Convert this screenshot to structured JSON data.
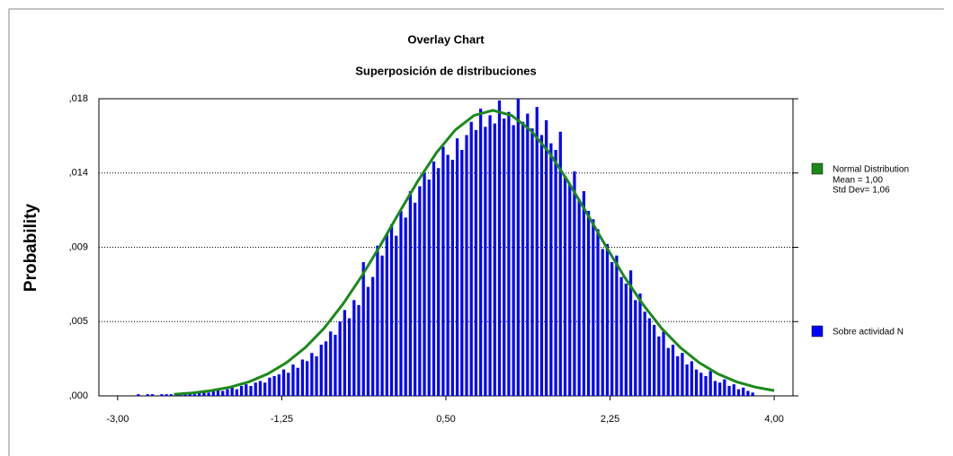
{
  "chart_data": {
    "type": "histogram",
    "title": "Overlay Chart",
    "subtitle": "Superposición de distribuciones",
    "y_label": "Probability",
    "xlim": [
      -3.2,
      4.2
    ],
    "ylim": [
      0,
      0.018
    ],
    "xticks": [
      {
        "value": -3,
        "label": "-3,00"
      },
      {
        "value": -1.25,
        "label": "-1,25"
      },
      {
        "value": 0.5,
        "label": "0,50"
      },
      {
        "value": 2.25,
        "label": "2,25"
      },
      {
        "value": 4,
        "label": "4,00"
      }
    ],
    "yticks": [
      {
        "value": 0,
        "label": ",000"
      },
      {
        "value": 0.0045,
        "label": ",005"
      },
      {
        "value": 0.009,
        "label": ",009"
      },
      {
        "value": 0.0135,
        "label": ",014"
      },
      {
        "value": 0.018,
        "label": ",018"
      }
    ],
    "grid": true,
    "series": [
      {
        "name": "Normal Distribution",
        "type": "line",
        "color": "#1a8a1a",
        "annotations": [
          "Mean = 1,00",
          "Std Dev= 1,06"
        ],
        "x": [
          -2.4,
          -2.2,
          -2.0,
          -1.8,
          -1.6,
          -1.4,
          -1.2,
          -1.0,
          -0.8,
          -0.6,
          -0.4,
          -0.2,
          0,
          0.2,
          0.4,
          0.6,
          0.8,
          1.0,
          1.2,
          1.4,
          1.6,
          1.8,
          2.0,
          2.2,
          2.4,
          2.6,
          2.8,
          3.0,
          3.2,
          3.4,
          3.6,
          3.8,
          4.0
        ],
        "values": [
          0.0001,
          0.00018,
          0.00032,
          0.00053,
          0.00085,
          0.00133,
          0.00201,
          0.00292,
          0.00409,
          0.00554,
          0.00723,
          0.00911,
          0.01109,
          0.01301,
          0.01474,
          0.01611,
          0.01699,
          0.0173,
          0.01699,
          0.01611,
          0.01474,
          0.01301,
          0.01109,
          0.00911,
          0.00723,
          0.00554,
          0.00409,
          0.00292,
          0.00201,
          0.00133,
          0.00085,
          0.00053,
          0.00032
        ]
      },
      {
        "name": "Sobre actividad N",
        "type": "histogram",
        "color": "#0000ff",
        "bins": [
          -2.8,
          -2.75,
          -2.7,
          -2.65,
          -2.6,
          -2.55,
          -2.5,
          -2.45,
          -2.4,
          -2.35,
          -2.3,
          -2.25,
          -2.2,
          -2.15,
          -2.1,
          -2.05,
          -2.0,
          -1.95,
          -1.9,
          -1.85,
          -1.8,
          -1.75,
          -1.7,
          -1.65,
          -1.6,
          -1.55,
          -1.5,
          -1.45,
          -1.4,
          -1.35,
          -1.3,
          -1.25,
          -1.2,
          -1.15,
          -1.1,
          -1.05,
          -1.0,
          -0.95,
          -0.9,
          -0.85,
          -0.8,
          -0.75,
          -0.7,
          -0.65,
          -0.6,
          -0.55,
          -0.5,
          -0.45,
          -0.4,
          -0.35,
          -0.3,
          -0.25,
          -0.2,
          -0.15,
          -0.1,
          -0.05,
          0,
          0.05,
          0.1,
          0.15,
          0.2,
          0.25,
          0.3,
          0.35,
          0.4,
          0.45,
          0.5,
          0.55,
          0.6,
          0.65,
          0.7,
          0.75,
          0.8,
          0.85,
          0.9,
          0.95,
          1.0,
          1.05,
          1.1,
          1.15,
          1.2,
          1.25,
          1.3,
          1.35,
          1.4,
          1.45,
          1.5,
          1.55,
          1.6,
          1.65,
          1.7,
          1.75,
          1.8,
          1.85,
          1.9,
          1.95,
          2.0,
          2.05,
          2.1,
          2.15,
          2.2,
          2.25,
          2.3,
          2.35,
          2.4,
          2.45,
          2.5,
          2.55,
          2.6,
          2.65,
          2.7,
          2.75,
          2.8,
          2.85,
          2.9,
          2.95,
          3.0,
          3.05,
          3.1,
          3.15,
          3.2,
          3.25,
          3.3,
          3.35,
          3.4,
          3.45,
          3.5,
          3.55,
          3.6,
          3.65,
          3.7,
          3.75,
          3.8
        ],
        "values": [
          0.0001,
          0,
          0.0001,
          0.0001,
          0,
          0.0001,
          0.0001,
          0.0001,
          0,
          0.0001,
          0.0001,
          0.0002,
          0.0001,
          0.0002,
          0.0003,
          0.0002,
          0.0003,
          0.0004,
          0.0003,
          0.0004,
          0.0005,
          0.0004,
          0.0006,
          0.0007,
          0.0006,
          0.0008,
          0.0009,
          0.0008,
          0.0011,
          0.0012,
          0.0013,
          0.0016,
          0.0014,
          0.0019,
          0.0017,
          0.0022,
          0.0021,
          0.0026,
          0.0024,
          0.0031,
          0.0033,
          0.0039,
          0.0037,
          0.0045,
          0.0052,
          0.0047,
          0.0058,
          0.0055,
          0.0081,
          0.0066,
          0.0072,
          0.0091,
          0.0085,
          0.0098,
          0.0104,
          0.0097,
          0.0112,
          0.0108,
          0.0124,
          0.0117,
          0.0127,
          0.0135,
          0.0131,
          0.0142,
          0.0138,
          0.0151,
          0.0146,
          0.0143,
          0.0156,
          0.0149,
          0.0158,
          0.0166,
          0.0161,
          0.0174,
          0.0163,
          0.017,
          0.0165,
          0.0179,
          0.0168,
          0.0172,
          0.0164,
          0.018,
          0.0166,
          0.0171,
          0.0162,
          0.0175,
          0.0158,
          0.0167,
          0.0153,
          0.0149,
          0.016,
          0.0133,
          0.0128,
          0.0136,
          0.0119,
          0.0124,
          0.0112,
          0.0107,
          0.0101,
          0.0089,
          0.0092,
          0.0081,
          0.0085,
          0.0072,
          0.0068,
          0.0076,
          0.0058,
          0.0062,
          0.0051,
          0.0047,
          0.0043,
          0.0036,
          0.0039,
          0.0029,
          0.0031,
          0.0024,
          0.0026,
          0.0019,
          0.0021,
          0.0016,
          0.0014,
          0.0012,
          0.0015,
          0.0009,
          0.0008,
          0.001,
          0.0006,
          0.0007,
          0.0004,
          0.0005,
          0.0003,
          0.0002
        ]
      }
    ]
  }
}
